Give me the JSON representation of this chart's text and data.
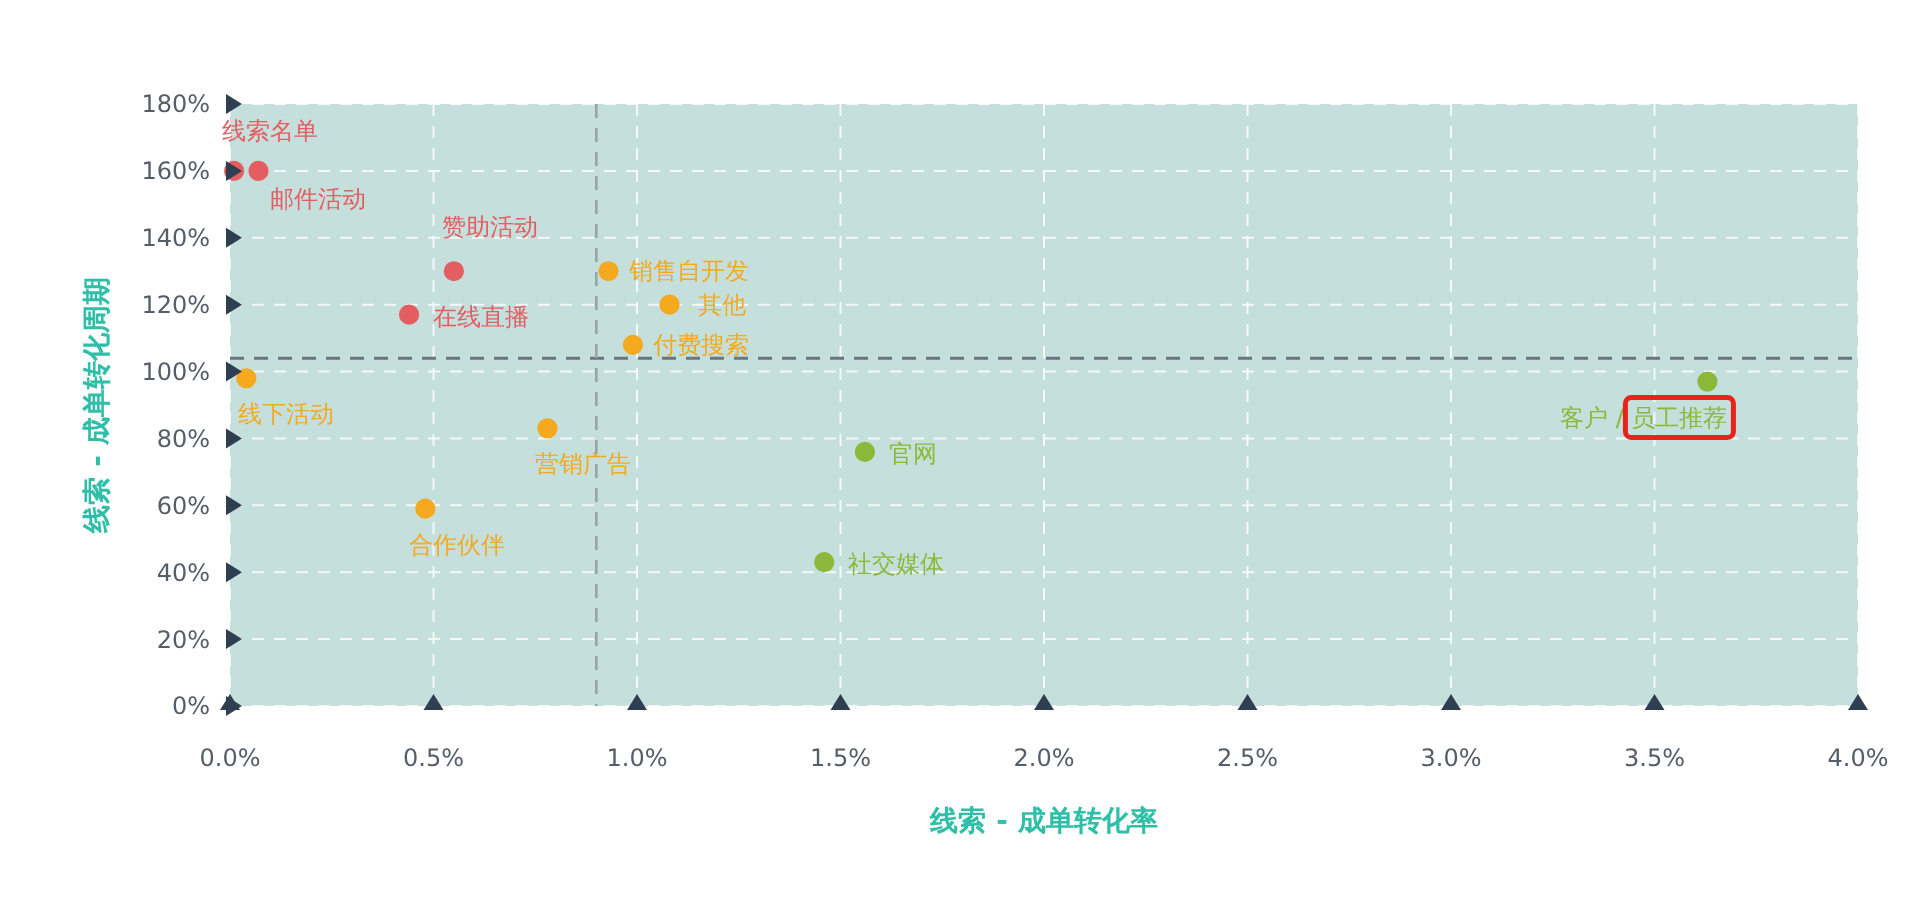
{
  "chart_data": {
    "type": "scatter",
    "xlabel": "线索 - 成单转化率",
    "ylabel": "线索 - 成单转化周期",
    "series": [
      {
        "color": "#e35d61",
        "x": [
          0.01,
          0.07,
          0.55,
          0.44
        ],
        "values": [
          160,
          160,
          130,
          117
        ]
      },
      {
        "color": "#f4a91f",
        "x": [
          0.93,
          1.08,
          0.99,
          0.04,
          0.78,
          0.48
        ],
        "values": [
          130,
          120,
          108,
          98,
          83,
          59
        ]
      },
      {
        "color": "#8cb83a",
        "x": [
          1.56,
          1.46,
          3.63
        ],
        "values": [
          76,
          43,
          97
        ]
      }
    ],
    "annotations": [
      {
        "text": "线索名单",
        "x": 0.01,
        "y": 160
      },
      {
        "text": "邮件活动",
        "x": 0.07,
        "y": 160
      },
      {
        "text": "赞助活动",
        "x": 0.55,
        "y": 130
      },
      {
        "text": "在线直播",
        "x": 0.44,
        "y": 117
      },
      {
        "text": "销售自开发",
        "x": 0.93,
        "y": 130
      },
      {
        "text": "其他",
        "x": 1.08,
        "y": 120
      },
      {
        "text": "付费搜索",
        "x": 0.99,
        "y": 108
      },
      {
        "text": "线下活动",
        "x": 0.04,
        "y": 98
      },
      {
        "text": "营销广告",
        "x": 0.78,
        "y": 83
      },
      {
        "text": "合作伙伴",
        "x": 0.48,
        "y": 59
      },
      {
        "text": "官网",
        "x": 1.56,
        "y": 76
      },
      {
        "text": "社交媒体",
        "x": 1.46,
        "y": 43
      },
      {
        "text": "客户 / 员工推荐",
        "x": 3.63,
        "y": 97
      }
    ],
    "ref_lines": [
      {
        "axis": "y",
        "value": 104,
        "line_style": "dashed",
        "color": "#6b7580"
      },
      {
        "axis": "x",
        "value": 0.9,
        "line_style": "dashed",
        "color": "#9aa3a8"
      }
    ],
    "xlim": [
      0,
      4
    ],
    "ylim": [
      0,
      180
    ],
    "xticks": [
      {
        "value": 0,
        "label": "0.0%"
      },
      {
        "value": 0.5,
        "label": "0.5%"
      },
      {
        "value": 1,
        "label": "1.0%"
      },
      {
        "value": 1.5,
        "label": "1.5%"
      },
      {
        "value": 2,
        "label": "2.0%"
      },
      {
        "value": 2.5,
        "label": "2.5%"
      },
      {
        "value": 3,
        "label": "3.0%"
      },
      {
        "value": 3.5,
        "label": "3.5%"
      },
      {
        "value": 4,
        "label": "4.0%"
      }
    ],
    "yticks": [
      {
        "value": 0,
        "label": "0%"
      },
      {
        "value": 20,
        "label": "20%"
      },
      {
        "value": 40,
        "label": "40%"
      },
      {
        "value": 60,
        "label": "60%"
      },
      {
        "value": 80,
        "label": "80%"
      },
      {
        "value": 100,
        "label": "100%"
      },
      {
        "value": 120,
        "label": "120%"
      },
      {
        "value": 140,
        "label": "140%"
      },
      {
        "value": 160,
        "label": "160%"
      },
      {
        "value": 180,
        "label": "180%"
      }
    ],
    "grid": true,
    "marker": "circle"
  }
}
